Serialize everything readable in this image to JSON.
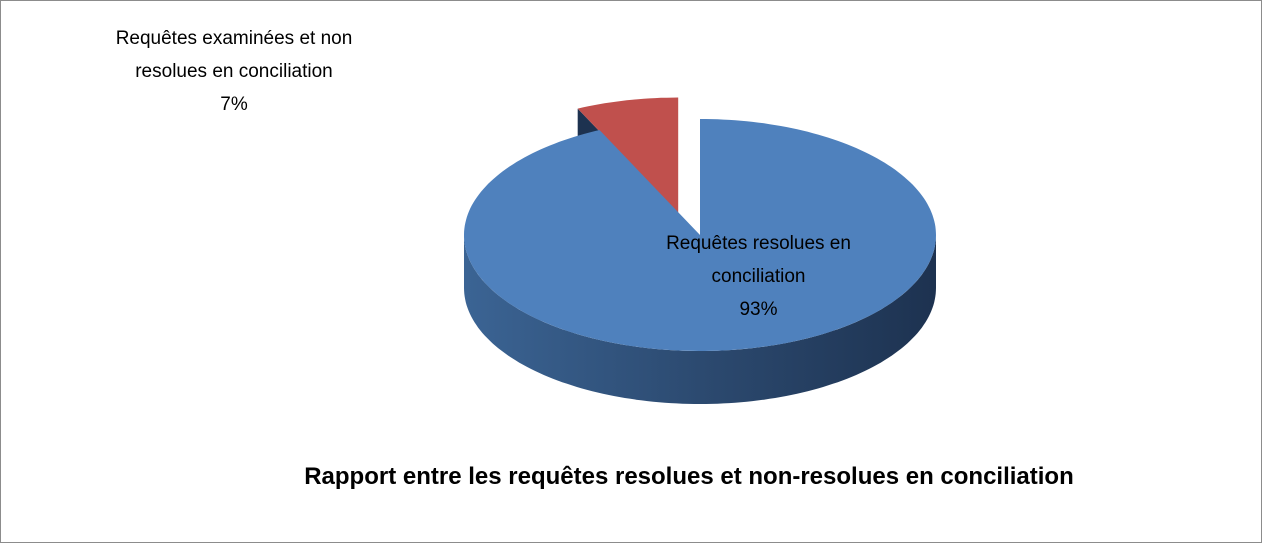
{
  "chart_data": {
    "type": "pie",
    "title": "Rapport entre les requêtes resolues et non-resolues en conciliation",
    "categories": [
      "Requêtes resolues en conciliation",
      "Requêtes examinées et non resolues en conciliation"
    ],
    "values": [
      93,
      7
    ],
    "value_labels": [
      "93%",
      "7%"
    ],
    "colors": [
      "#4f81bd",
      "#c0504d"
    ]
  }
}
